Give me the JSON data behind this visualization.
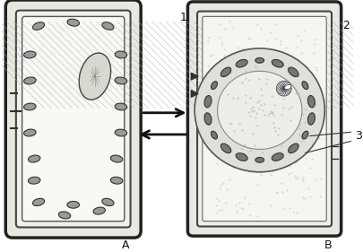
{
  "bg_color": "#ffffff",
  "cell_color": "#f5f5f0",
  "wall_color": "#333333",
  "chloroplast_color_A": "#888888",
  "chloroplast_color_B": "#666666",
  "vacuole_color": "#e8e8e0",
  "cytoplasm_color": "#d0d0c8",
  "label_A": "A",
  "label_B": "B",
  "label_1": "1",
  "label_2": "2",
  "label_3": "3",
  "arrow_color": "#111111",
  "figsize": [
    4.05,
    2.81
  ],
  "dpi": 100
}
